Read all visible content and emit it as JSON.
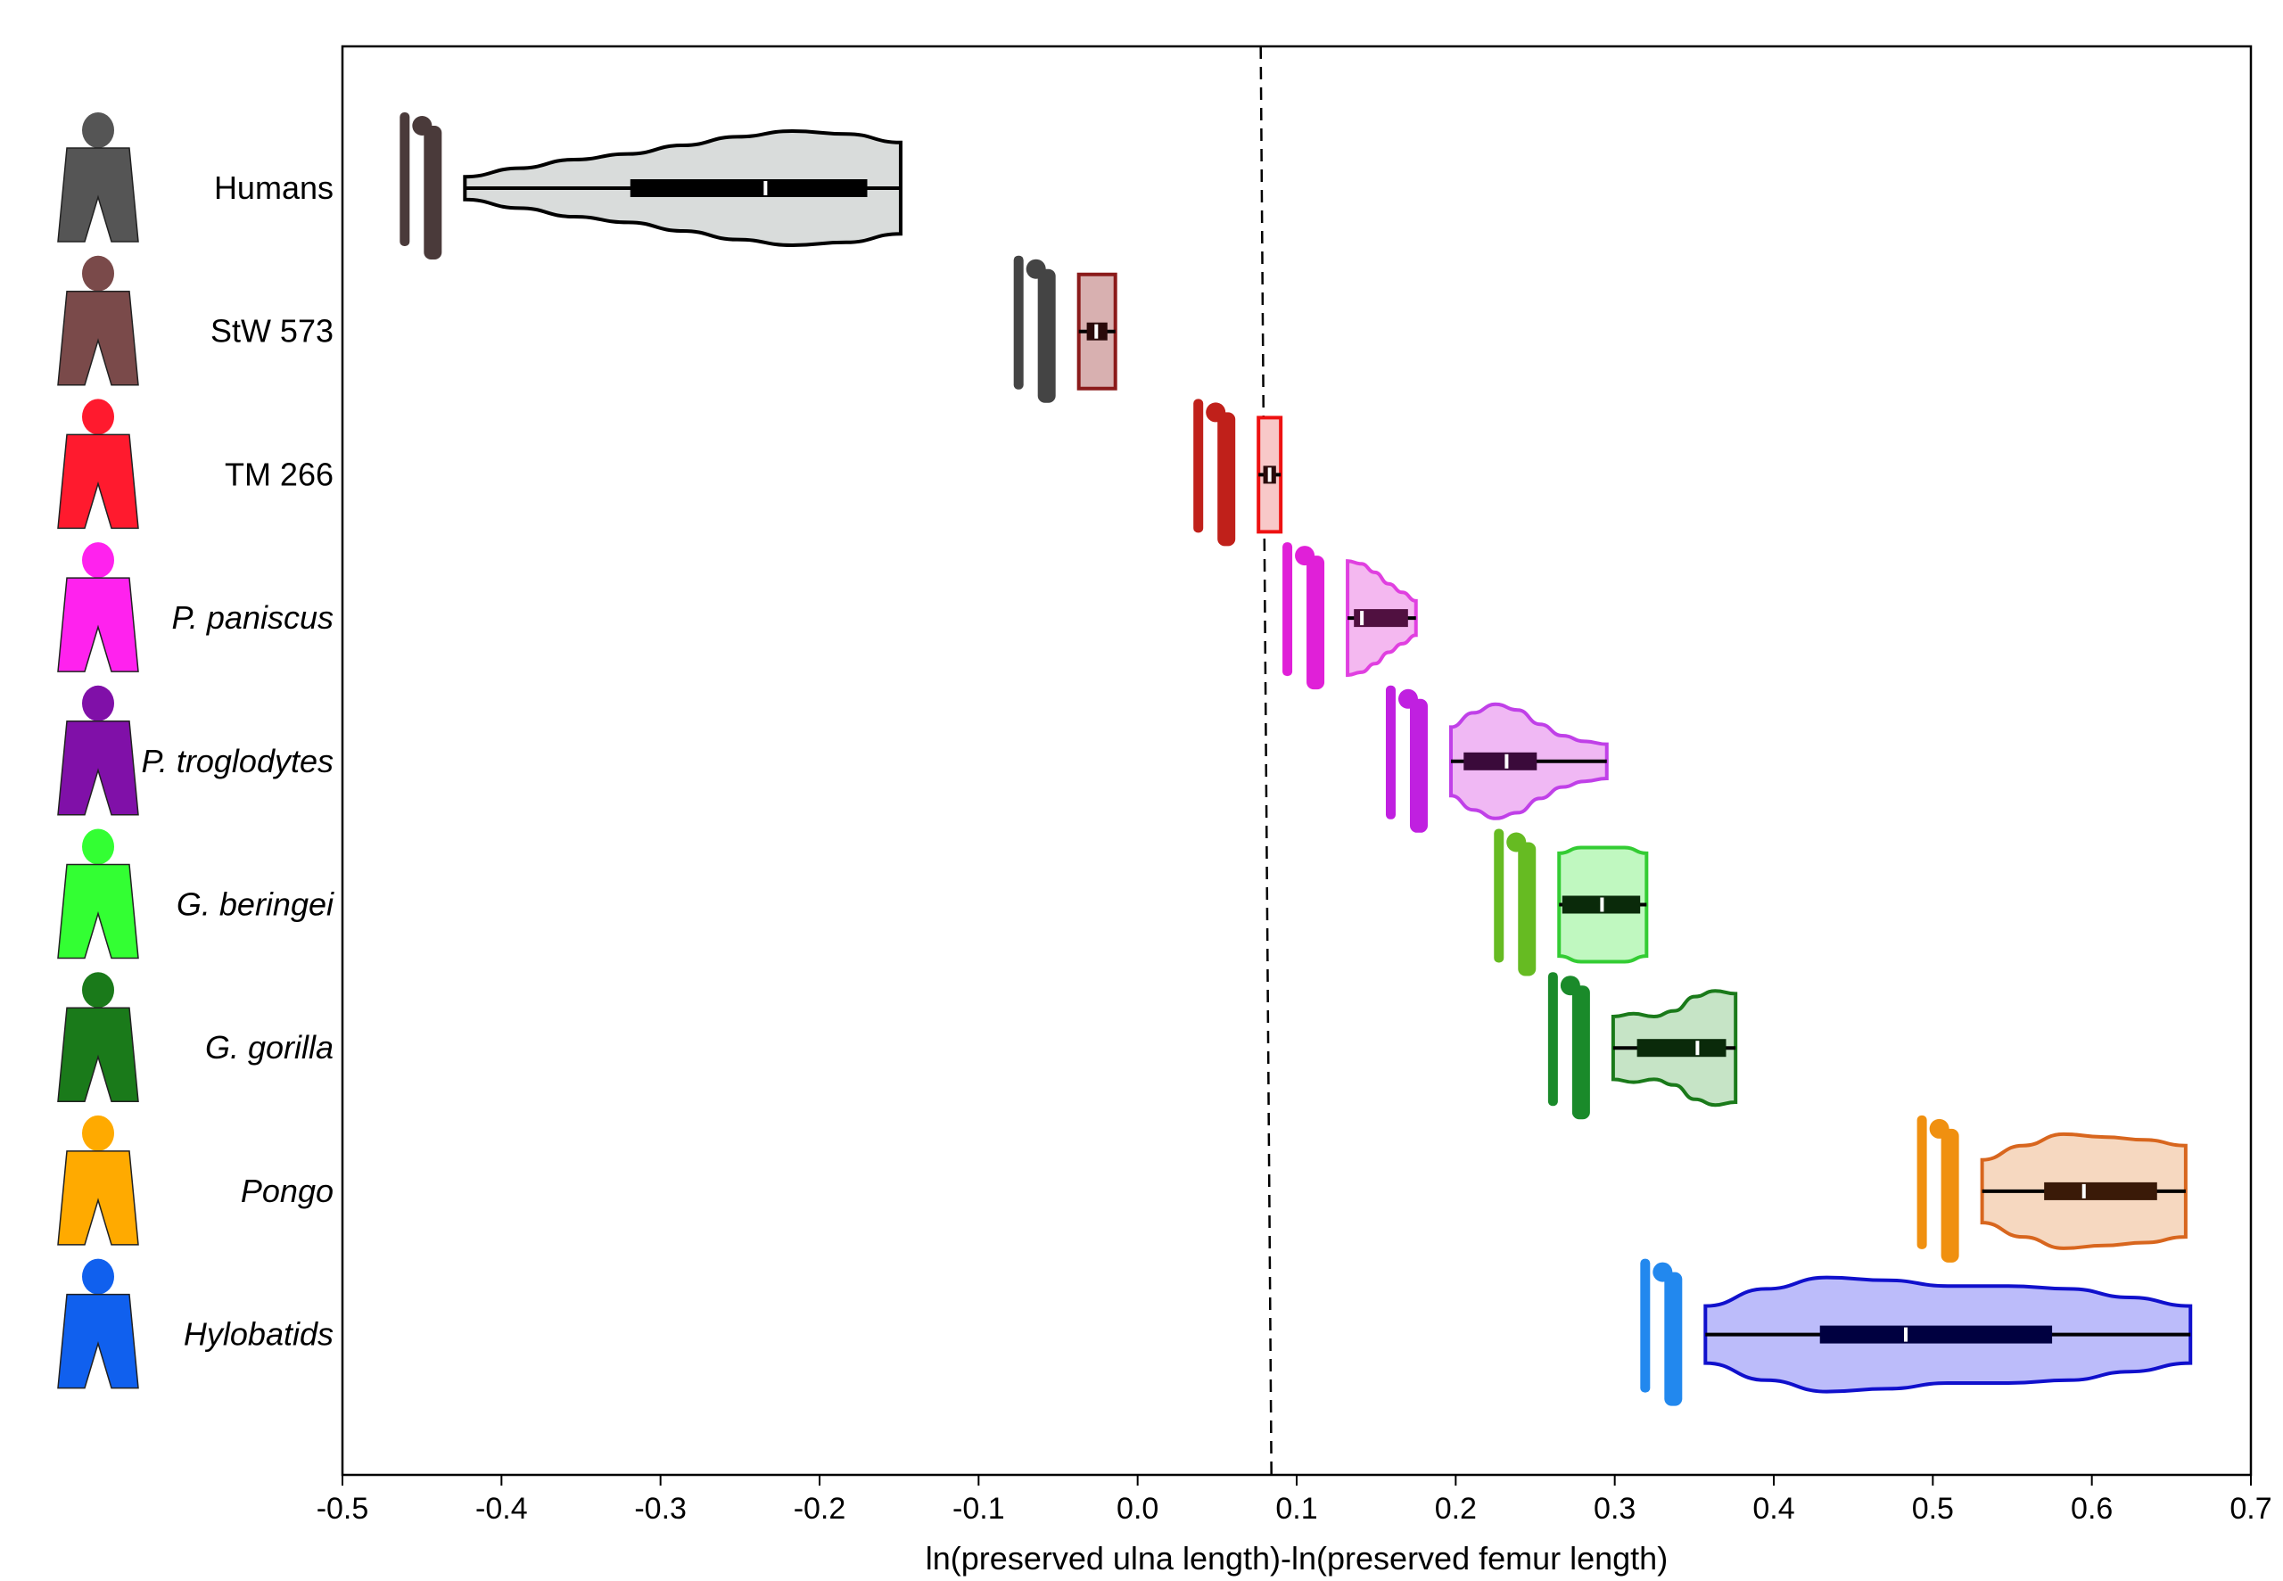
{
  "chart_data": {
    "type": "violin",
    "xlabel": "ln(preserved ulna length)-ln(preserved femur length)",
    "ylabel": "",
    "xlim": [
      -0.5,
      0.7
    ],
    "xticks": [
      "-0.5",
      "-0.4",
      "-0.3",
      "-0.2",
      "-0.1",
      "0.0",
      "0.1",
      "0.2",
      "0.3",
      "0.4",
      "0.5",
      "0.6",
      "0.7"
    ],
    "grid": false,
    "reference_line": {
      "x": 0.083,
      "style": "dashed"
    },
    "series": [
      {
        "name": "Humans",
        "italic": false,
        "min": -0.423,
        "q1": -0.319,
        "median": -0.234,
        "q3": -0.17,
        "max": -0.149,
        "edge": "#000000",
        "fill": "#d9dcdb",
        "box": "#000000",
        "silhouette": "#555555",
        "bone": "#4a3a3a",
        "density": [
          0.2,
          0.35,
          0.5,
          0.6,
          0.75,
          0.9,
          1.0,
          0.95,
          0.8
        ]
      },
      {
        "name": "StW 573",
        "italic": false,
        "min": -0.037,
        "q1": -0.032,
        "median": -0.026,
        "q3": -0.019,
        "max": -0.014,
        "edge": "#8b1a1a",
        "fill": "#d8b0b0",
        "box": "#2a0a0a",
        "silhouette": "#7a4a4a",
        "bone": "#444444",
        "density": [
          1,
          1,
          1,
          1,
          1
        ]
      },
      {
        "name": "TM 266",
        "italic": false,
        "min": 0.076,
        "q1": 0.079,
        "median": 0.083,
        "q3": 0.087,
        "max": 0.09,
        "edge": "#ee1111",
        "fill": "#f8c8c8",
        "box": "#2a0a0a",
        "silhouette": "#ff1a2e",
        "bone": "#c0201a",
        "density": [
          1,
          1,
          1,
          1,
          1
        ]
      },
      {
        "name": "P. paniscus",
        "italic": true,
        "min": 0.132,
        "q1": 0.136,
        "median": 0.141,
        "q3": 0.17,
        "max": 0.175,
        "edge": "#e040e0",
        "fill": "#f4b8f0",
        "box": "#501040",
        "silhouette": "#ff22ee",
        "bone": "#e020d8",
        "density": [
          1,
          0.95,
          0.8,
          0.6,
          0.45,
          0.3
        ]
      },
      {
        "name": "P. troglodytes",
        "italic": true,
        "min": 0.197,
        "q1": 0.205,
        "median": 0.232,
        "q3": 0.251,
        "max": 0.295,
        "edge": "#c040e8",
        "fill": "#f0b8f4",
        "box": "#3a0a3a",
        "silhouette": "#8010a8",
        "bone": "#c020e0",
        "density": [
          0.6,
          0.85,
          1.0,
          0.9,
          0.65,
          0.45,
          0.35,
          0.3
        ]
      },
      {
        "name": "G. beringei",
        "italic": true,
        "min": 0.265,
        "q1": 0.267,
        "median": 0.292,
        "q3": 0.316,
        "max": 0.32,
        "edge": "#33cc33",
        "fill": "#c0f8c0",
        "box": "#0a2a0a",
        "silhouette": "#33ff33",
        "bone": "#66bb22",
        "density": [
          0.9,
          1,
          1,
          1,
          0.9
        ]
      },
      {
        "name": "G. gorilla",
        "italic": true,
        "min": 0.299,
        "q1": 0.314,
        "median": 0.352,
        "q3": 0.37,
        "max": 0.376,
        "edge": "#1a7a1a",
        "fill": "#c6e4c6",
        "box": "#0a2a0a",
        "silhouette": "#1a7a1a",
        "bone": "#1a8a2a",
        "density": [
          0.55,
          0.6,
          0.55,
          0.65,
          0.9,
          1.0,
          0.95
        ]
      },
      {
        "name": "Pongo",
        "italic": true,
        "min": 0.531,
        "q1": 0.57,
        "median": 0.595,
        "q3": 0.641,
        "max": 0.659,
        "edge": "#d8661e",
        "fill": "#f6d8c0",
        "box": "#3a1a08",
        "silhouette": "#ffaa00",
        "bone": "#f09010",
        "density": [
          0.55,
          0.8,
          1.0,
          0.95,
          0.9,
          0.8
        ]
      },
      {
        "name": "Hylobatids",
        "italic": true,
        "min": 0.357,
        "q1": 0.429,
        "median": 0.483,
        "q3": 0.575,
        "max": 0.662,
        "edge": "#1010cc",
        "fill": "#bcbcfa",
        "box": "#000040",
        "silhouette": "#1060ee",
        "bone": "#2288ee",
        "density": [
          0.5,
          0.8,
          1.0,
          0.95,
          0.85,
          0.85,
          0.8,
          0.65,
          0.5
        ]
      }
    ]
  }
}
